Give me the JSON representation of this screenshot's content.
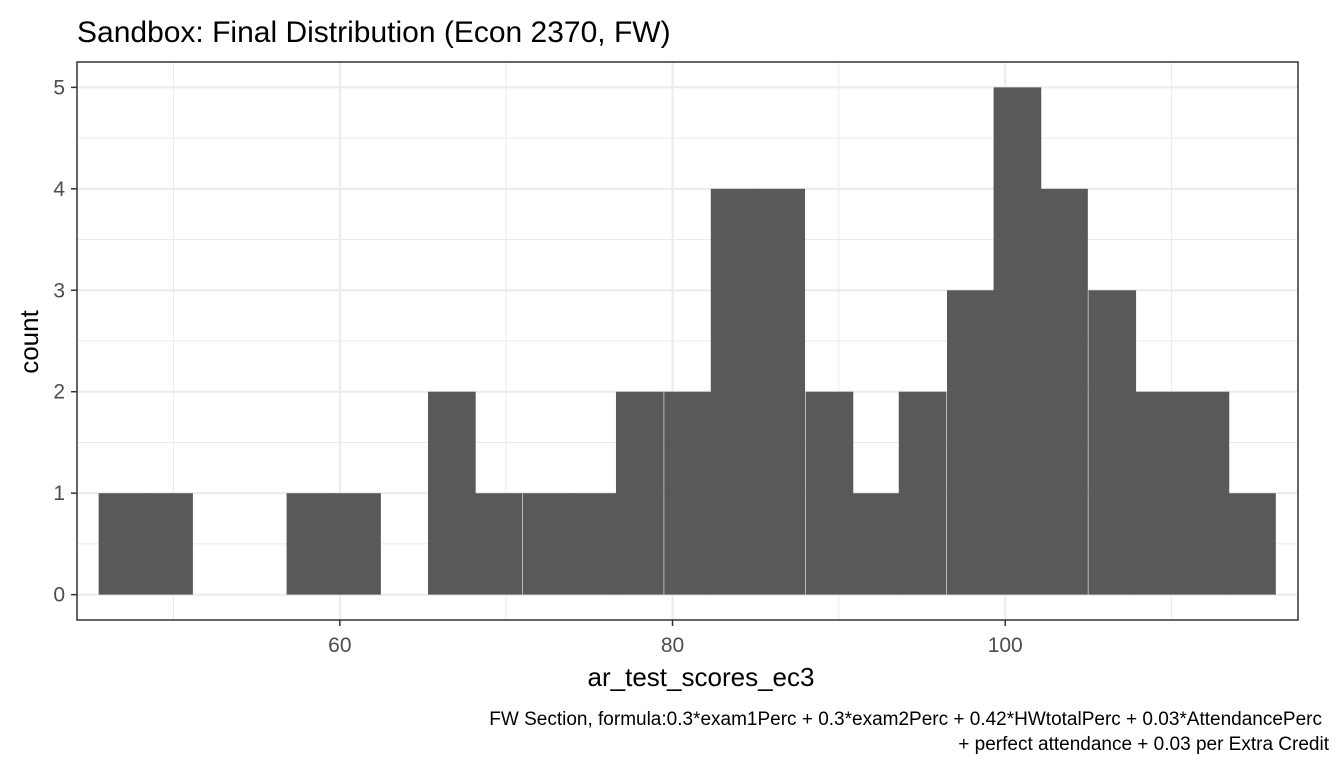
{
  "chart_data": {
    "type": "bar",
    "title": "Sandbox: Final Distribution (Econ 2370, FW)",
    "xlabel": "ar_test_scores_ec3",
    "ylabel": "count",
    "caption": [
      "FW Section, formula:0.3*exam1Perc + 0.3*exam2Perc + 0.42*HWtotalPerc + 0.03*AttendancePerc",
      "+ perfect attendance + 0.03 per Extra Credit"
    ],
    "xlim": [
      44.2,
      117.6
    ],
    "ylim": [
      -0.25,
      5.25
    ],
    "x_ticks": [
      60,
      80,
      100
    ],
    "x_minor_ticks": [
      50,
      70,
      90,
      110
    ],
    "y_ticks": [
      0,
      1,
      2,
      3,
      4,
      5
    ],
    "bin_width": 2.83,
    "bin_starts": [
      45.5,
      48.3,
      51.2,
      54.0,
      56.8,
      59.6,
      62.5,
      65.3,
      68.1,
      71.0,
      73.8,
      76.6,
      79.5,
      82.3,
      85.1,
      88.0,
      90.8,
      93.6,
      96.5,
      99.3,
      102.1,
      105.0,
      107.8,
      110.6,
      113.4
    ],
    "values": [
      1,
      1,
      0,
      0,
      1,
      1,
      0,
      2,
      1,
      1,
      1,
      2,
      2,
      4,
      4,
      2,
      1,
      2,
      3,
      5,
      4,
      3,
      2,
      2,
      1
    ],
    "bar_color": "#595959",
    "grid": true,
    "grid_color": "#ebebeb",
    "theme": "bw"
  }
}
